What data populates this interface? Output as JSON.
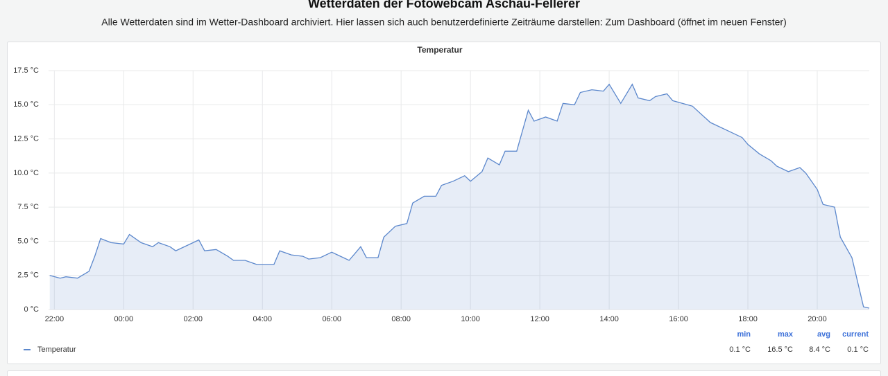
{
  "header": {
    "title": "Wetterdaten der Fotowebcam Aschau-Fellerer",
    "subtitle": "Alle Wetterdaten sind im Wetter-Dashboard archiviert. Hier lassen sich auch benutzerdefinierte Zeiträume darstellen: Zum Dashboard (öffnet im neuen Fenster)"
  },
  "chart_data": {
    "type": "line",
    "title": "Temperatur",
    "x": [
      "21:52",
      "22:10",
      "22:20",
      "22:40",
      "23:00",
      "23:10",
      "23:20",
      "23:38",
      "00:00",
      "00:10",
      "00:30",
      "00:50",
      "01:00",
      "01:20",
      "01:30",
      "02:10",
      "02:20",
      "02:40",
      "03:00",
      "03:10",
      "03:30",
      "03:50",
      "04:20",
      "04:30",
      "04:50",
      "05:10",
      "05:20",
      "05:40",
      "06:00",
      "06:10",
      "06:30",
      "06:50",
      "07:00",
      "07:20",
      "07:30",
      "07:50",
      "08:10",
      "08:20",
      "08:40",
      "09:00",
      "09:10",
      "09:30",
      "09:50",
      "10:00",
      "10:20",
      "10:30",
      "10:50",
      "11:00",
      "11:20",
      "11:40",
      "11:50",
      "12:10",
      "12:30",
      "12:40",
      "13:00",
      "13:10",
      "13:30",
      "13:50",
      "14:00",
      "14:20",
      "14:40",
      "14:50",
      "15:10",
      "15:20",
      "15:40",
      "15:50",
      "16:24",
      "16:55",
      "17:25",
      "17:50",
      "18:00",
      "18:20",
      "18:40",
      "18:50",
      "19:10",
      "19:30",
      "19:40",
      "20:00",
      "20:10",
      "20:30",
      "20:40",
      "21:00",
      "21:20",
      "21:30"
    ],
    "series": [
      {
        "name": "Temperatur",
        "color": "#5b87cc",
        "values": [
          2.5,
          2.3,
          2.4,
          2.3,
          2.8,
          3.9,
          5.2,
          4.9,
          4.8,
          5.5,
          4.9,
          4.6,
          4.9,
          4.6,
          4.3,
          5.1,
          4.3,
          4.4,
          3.9,
          3.6,
          3.6,
          3.3,
          3.3,
          4.3,
          4.0,
          3.9,
          3.7,
          3.8,
          4.2,
          4.0,
          3.6,
          4.6,
          3.8,
          3.8,
          5.3,
          6.1,
          6.3,
          7.8,
          8.3,
          8.3,
          9.1,
          9.4,
          9.8,
          9.4,
          10.1,
          11.1,
          10.6,
          11.6,
          11.6,
          14.6,
          13.8,
          14.1,
          13.8,
          15.1,
          15.0,
          15.9,
          16.1,
          16.0,
          16.5,
          15.1,
          16.5,
          15.5,
          15.3,
          15.6,
          15.8,
          15.3,
          14.9,
          13.7,
          13.1,
          12.6,
          12.1,
          11.4,
          10.9,
          10.5,
          10.1,
          10.4,
          10.0,
          8.8,
          7.7,
          7.5,
          5.3,
          3.8,
          0.2,
          0.1
        ]
      }
    ],
    "xlim": [
      "21:50",
      "21:30"
    ],
    "xticks": [
      "22:00",
      "00:00",
      "02:00",
      "04:00",
      "06:00",
      "08:00",
      "10:00",
      "12:00",
      "14:00",
      "16:00",
      "18:00",
      "20:00"
    ],
    "ylim": [
      0,
      17.5
    ],
    "yticks": [
      {
        "value": 0,
        "label": "0 °C"
      },
      {
        "value": 2.5,
        "label": "2.5 °C"
      },
      {
        "value": 5,
        "label": "5.0 °C"
      },
      {
        "value": 7.5,
        "label": "7.5 °C"
      },
      {
        "value": 10,
        "label": "10.0 °C"
      },
      {
        "value": 12.5,
        "label": "12.5 °C"
      },
      {
        "value": 15,
        "label": "15.0 °C"
      },
      {
        "value": 17.5,
        "label": "17.5 °C"
      }
    ],
    "grid": true,
    "legend_stats": {
      "columns": [
        "min",
        "max",
        "avg",
        "current"
      ],
      "values": [
        "0.1 °C",
        "16.5 °C",
        "8.4 °C",
        "0.1 °C"
      ]
    }
  }
}
